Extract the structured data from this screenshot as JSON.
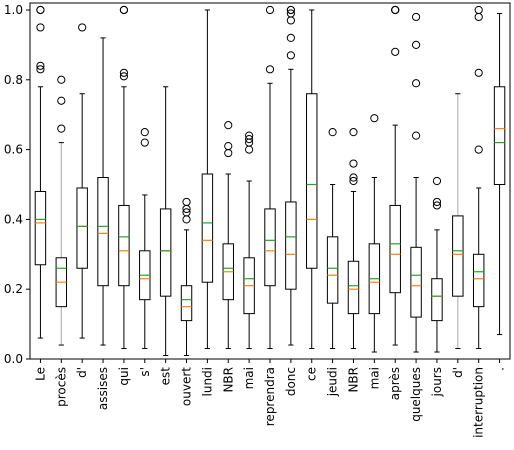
{
  "chart_data": {
    "type": "box",
    "title": "",
    "xlabel": "",
    "ylabel": "",
    "ylim": [
      0.0,
      1.02
    ],
    "yticks": [
      "0.0",
      "0.2",
      "0.4",
      "0.6",
      "0.8",
      "1.0"
    ],
    "grid": false,
    "legend": "none",
    "colors": {
      "box": "#000000",
      "median": "#ff7f0e",
      "mean": "#2ca02c",
      "whisker": "#000000",
      "grey_whisker": "#aaaaaa"
    },
    "categories": [
      "Le",
      "procès",
      "d'",
      "assises",
      "qui",
      "s'",
      "est",
      "ouvert",
      "lundi",
      "NBR",
      "mai",
      "reprendra",
      "donc",
      "ce",
      "jeudi",
      "NBR",
      "mai",
      "après",
      "quelques",
      "jours",
      "d'",
      "interruption",
      "."
    ],
    "boxes": [
      {
        "low": 0.06,
        "q1": 0.27,
        "median": 0.39,
        "mean": 0.4,
        "q3": 0.48,
        "high": 0.78,
        "outliers": [
          0.83,
          0.84,
          0.95,
          1.0,
          1.0
        ]
      },
      {
        "low": 0.04,
        "q1": 0.15,
        "median": 0.22,
        "mean": 0.26,
        "q3": 0.29,
        "high": 0.62,
        "outliers": [
          0.66,
          0.74,
          0.8
        ],
        "grey": true
      },
      {
        "low": 0.06,
        "q1": 0.26,
        "median": 0.38,
        "mean": 0.38,
        "q3": 0.49,
        "high": 0.76,
        "outliers": [
          0.95
        ]
      },
      {
        "low": 0.04,
        "q1": 0.21,
        "median": 0.36,
        "mean": 0.38,
        "q3": 0.52,
        "high": 0.92,
        "outliers": []
      },
      {
        "low": 0.03,
        "q1": 0.21,
        "median": 0.31,
        "mean": 0.35,
        "q3": 0.44,
        "high": 0.78,
        "outliers": [
          0.81,
          0.82,
          1.0,
          1.0
        ]
      },
      {
        "low": 0.03,
        "q1": 0.17,
        "median": 0.23,
        "mean": 0.24,
        "q3": 0.31,
        "high": 0.47,
        "outliers": [
          0.62,
          0.65
        ]
      },
      {
        "low": 0.01,
        "q1": 0.18,
        "median": 0.31,
        "mean": 0.31,
        "q3": 0.43,
        "high": 0.78,
        "outliers": []
      },
      {
        "low": 0.01,
        "q1": 0.11,
        "median": 0.15,
        "mean": 0.17,
        "q3": 0.21,
        "high": 0.37,
        "outliers": [
          0.4,
          0.42,
          0.43,
          0.45
        ]
      },
      {
        "low": 0.03,
        "q1": 0.22,
        "median": 0.34,
        "mean": 0.39,
        "q3": 0.53,
        "high": 1.0,
        "outliers": []
      },
      {
        "low": 0.03,
        "q1": 0.17,
        "median": 0.25,
        "mean": 0.26,
        "q3": 0.33,
        "high": 0.53,
        "outliers": [
          0.59,
          0.61,
          0.67
        ]
      },
      {
        "low": 0.03,
        "q1": 0.13,
        "median": 0.21,
        "mean": 0.23,
        "q3": 0.29,
        "high": 0.51,
        "outliers": [
          0.6,
          0.62,
          0.63,
          0.64
        ]
      },
      {
        "low": 0.03,
        "q1": 0.21,
        "median": 0.31,
        "mean": 0.34,
        "q3": 0.43,
        "high": 0.79,
        "outliers": [
          0.83,
          1.0
        ]
      },
      {
        "low": 0.04,
        "q1": 0.2,
        "median": 0.3,
        "mean": 0.35,
        "q3": 0.45,
        "high": 0.83,
        "outliers": [
          0.87,
          0.92,
          0.97,
          0.99,
          1.0,
          1.0
        ]
      },
      {
        "low": 0.03,
        "q1": 0.26,
        "median": 0.4,
        "mean": 0.5,
        "q3": 0.76,
        "high": 1.0,
        "outliers": []
      },
      {
        "low": 0.03,
        "q1": 0.16,
        "median": 0.24,
        "mean": 0.26,
        "q3": 0.35,
        "high": 0.5,
        "outliers": [
          0.65
        ]
      },
      {
        "low": 0.03,
        "q1": 0.13,
        "median": 0.2,
        "mean": 0.21,
        "q3": 0.28,
        "high": 0.48,
        "outliers": [
          0.51,
          0.52,
          0.56,
          0.65
        ]
      },
      {
        "low": 0.02,
        "q1": 0.13,
        "median": 0.22,
        "mean": 0.23,
        "q3": 0.33,
        "high": 0.52,
        "outliers": [
          0.69
        ]
      },
      {
        "low": 0.04,
        "q1": 0.19,
        "median": 0.3,
        "mean": 0.33,
        "q3": 0.44,
        "high": 0.67,
        "outliers": [
          0.88,
          1.0,
          1.0,
          1.0
        ]
      },
      {
        "low": 0.02,
        "q1": 0.12,
        "median": 0.21,
        "mean": 0.24,
        "q3": 0.32,
        "high": 0.52,
        "outliers": [
          0.64,
          0.79,
          0.9,
          0.98
        ]
      },
      {
        "low": 0.02,
        "q1": 0.11,
        "median": 0.18,
        "mean": 0.18,
        "q3": 0.23,
        "high": 0.37,
        "outliers": [
          0.44,
          0.45,
          0.51
        ]
      },
      {
        "low": 0.03,
        "q1": 0.18,
        "median": 0.3,
        "mean": 0.31,
        "q3": 0.41,
        "high": 0.76,
        "outliers": [],
        "grey": true
      },
      {
        "low": 0.03,
        "q1": 0.15,
        "median": 0.23,
        "mean": 0.25,
        "q3": 0.3,
        "high": 0.49,
        "outliers": [
          0.6,
          0.82,
          0.98,
          1.0
        ]
      },
      {
        "low": 0.07,
        "q1": 0.5,
        "median": 0.66,
        "mean": 0.62,
        "q3": 0.78,
        "high": 0.99,
        "outliers": []
      }
    ]
  }
}
